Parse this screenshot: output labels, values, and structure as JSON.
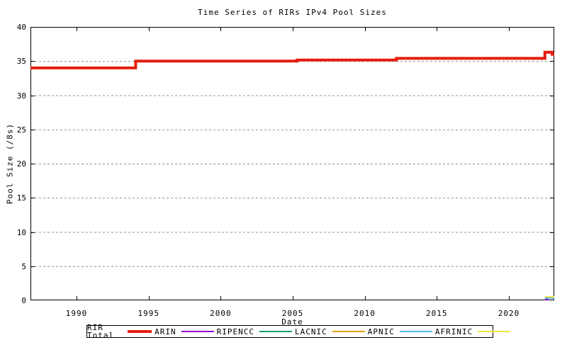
{
  "chart_data": {
    "type": "line",
    "title": "Time Series of RIRs IPv4 Pool Sizes",
    "xlabel": "Date",
    "ylabel": "Pool Size (/8s)",
    "xlim": [
      1986.8,
      2023.15
    ],
    "ylim": [
      0,
      40
    ],
    "x_ticks": [
      1990,
      1995,
      2000,
      2005,
      2010,
      2015,
      2020
    ],
    "y_ticks": [
      0,
      5,
      10,
      15,
      20,
      25,
      30,
      35,
      40
    ],
    "grid": "horizontal-dotted",
    "grid_color": "#909090",
    "legend_position": "bottom-box",
    "series": [
      {
        "name": "RIR Total",
        "color": "#e51e10",
        "line_width": 4,
        "step": true,
        "points": [
          [
            1986.8,
            34
          ],
          [
            1994.1,
            35
          ],
          [
            2005.3,
            35.15
          ],
          [
            2012.2,
            35.4
          ],
          [
            2022.5,
            36.3
          ],
          [
            2023.0,
            36.0
          ],
          [
            2023.15,
            36.0
          ]
        ]
      },
      {
        "name": "ARIN",
        "color": "#9400d3",
        "line_width": 2,
        "step": true,
        "points": [
          [
            2022.5,
            0.12
          ],
          [
            2022.75,
            0.12
          ]
        ]
      },
      {
        "name": "RIPENCC",
        "color": "#009e73",
        "line_width": 2,
        "step": true,
        "points": []
      },
      {
        "name": "LACNIC",
        "color": "#e69f00",
        "line_width": 2,
        "step": true,
        "points": []
      },
      {
        "name": "APNIC",
        "color": "#56b4e9",
        "line_width": 2,
        "step": true,
        "points": [
          [
            2022.5,
            0.33
          ],
          [
            2023.15,
            0.33
          ]
        ]
      },
      {
        "name": "AFRINIC",
        "color": "#f0e442",
        "line_width": 2,
        "step": true,
        "points": [
          [
            2022.5,
            0.52
          ],
          [
            2023.15,
            0.52
          ]
        ]
      }
    ]
  }
}
